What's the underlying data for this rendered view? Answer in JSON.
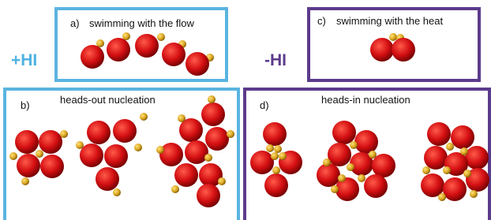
{
  "side_labels": {
    "positive": "+HI",
    "negative": "-HI"
  },
  "panels": [
    {
      "letter": "a)",
      "title": "swimming with the flow"
    },
    {
      "letter": "c)",
      "title": "swimming with the heat"
    },
    {
      "letter": "b)",
      "title": "heads-out nucleation"
    },
    {
      "letter": "d)",
      "title": "heads-in nucleation"
    }
  ]
}
